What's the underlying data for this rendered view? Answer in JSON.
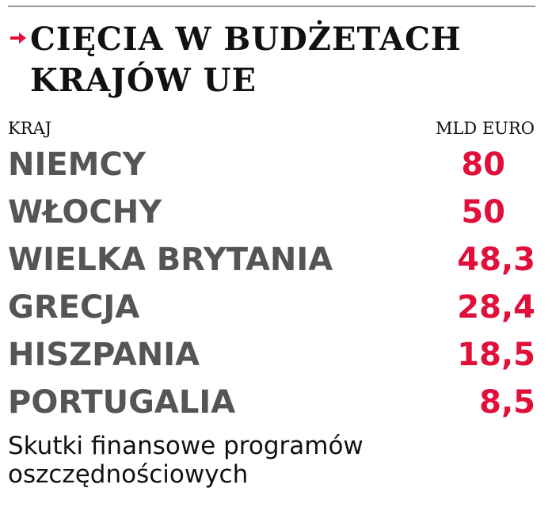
{
  "colors": {
    "accent": "#e0103a",
    "country_text": "#555555",
    "title_text": "#111111",
    "rule": "#9a9a9a"
  },
  "header": {
    "arrow_icon": "arrow-right-icon",
    "title_line1": "CIĘCIA W BUDŻETACH",
    "title_line2": "KRAJÓW UE"
  },
  "columns": {
    "left": "KRAJ",
    "right": "MLD EURO"
  },
  "chart_data": {
    "type": "table",
    "title": "CIĘCIA W BUDŻETACH KRAJÓW UE",
    "columns": [
      "KRAJ",
      "MLD EURO"
    ],
    "rows": [
      {
        "label": "NIEMCY",
        "display": "80",
        "value": 80
      },
      {
        "label": "WŁOCHY",
        "display": "50",
        "value": 50
      },
      {
        "label": "WIELKA BRYTANIA",
        "display": "48,3",
        "value": 48.3
      },
      {
        "label": "GRECJA",
        "display": "28,4",
        "value": 28.4
      },
      {
        "label": "HISZPANIA",
        "display": "18,5",
        "value": 18.5
      },
      {
        "label": "PORTUGALIA",
        "display": "8,5",
        "value": 8.5
      }
    ],
    "footnote": "Skutki finansowe programów oszczędnościowych"
  },
  "footer": {
    "line1": "Skutki finansowe programów",
    "line2": "oszczędnościowych"
  }
}
